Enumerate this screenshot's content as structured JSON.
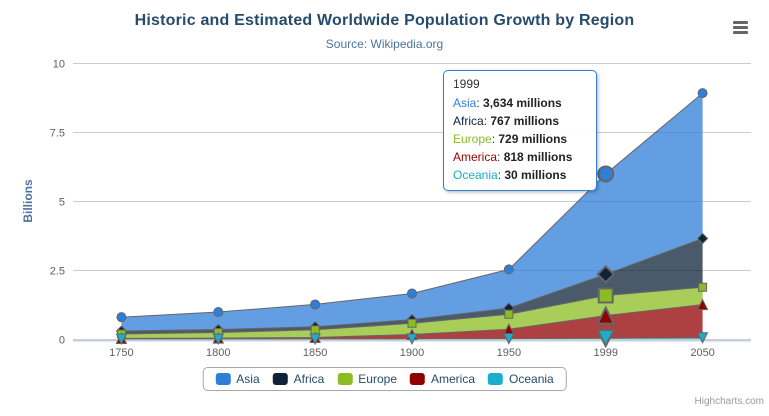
{
  "header": {
    "title": "Historic and Estimated Worldwide Population Growth by Region",
    "subtitle": "Source: Wikipedia.org"
  },
  "chart_data": {
    "type": "area",
    "stacking": "normal",
    "categories": [
      "1750",
      "1800",
      "1850",
      "1900",
      "1950",
      "1999",
      "2050"
    ],
    "series": [
      {
        "name": "Asia",
        "color": "#2f7ed8",
        "marker": "circle",
        "values": [
          502,
          635,
          809,
          947,
          1402,
          3634,
          5268
        ]
      },
      {
        "name": "Africa",
        "color": "#0d233a",
        "marker": "diamond",
        "values": [
          106,
          107,
          111,
          133,
          221,
          767,
          1766
        ]
      },
      {
        "name": "Europe",
        "color": "#8bbc21",
        "marker": "square",
        "values": [
          163,
          203,
          276,
          408,
          547,
          729,
          628
        ]
      },
      {
        "name": "America",
        "color": "#910000",
        "marker": "triangle",
        "values": [
          18,
          31,
          54,
          156,
          339,
          818,
          1201
        ]
      },
      {
        "name": "Oceania",
        "color": "#1aadce",
        "marker": "triangle-down",
        "values": [
          2,
          2,
          2,
          6,
          13,
          30,
          46
        ]
      }
    ],
    "values_unit": "millions",
    "ylabel": "Billions",
    "yticks": [
      0,
      2.5,
      5,
      7.5,
      10
    ],
    "ylim": [
      0,
      10
    ],
    "grid": "horizontal",
    "legend_position": "bottom",
    "fill_opacity": 0.75,
    "hover_category": "1999"
  },
  "tooltip": {
    "header": "1999",
    "value_suffix": "millions"
  },
  "legend": {
    "items": [
      "Asia",
      "Africa",
      "Europe",
      "America",
      "Oceania"
    ]
  },
  "credits": {
    "label": "Highcharts.com"
  },
  "theme": {
    "title_color": "#274b6d",
    "subtitle_color": "#4d759e",
    "axis_label_color": "#606060",
    "axis_title_color": "#4d759e",
    "grid_color": "#cccccc",
    "axis_line_color": "#c0d0e0",
    "legend_text_color": "#274b6d",
    "legend_border_color": "#a8a8a8",
    "tooltip_border_color": "#2f7ed8",
    "marker_stroke_color": "#666666",
    "line_color": "#666666",
    "credits_color": "#999999",
    "menu_icon_color": "#666666"
  }
}
